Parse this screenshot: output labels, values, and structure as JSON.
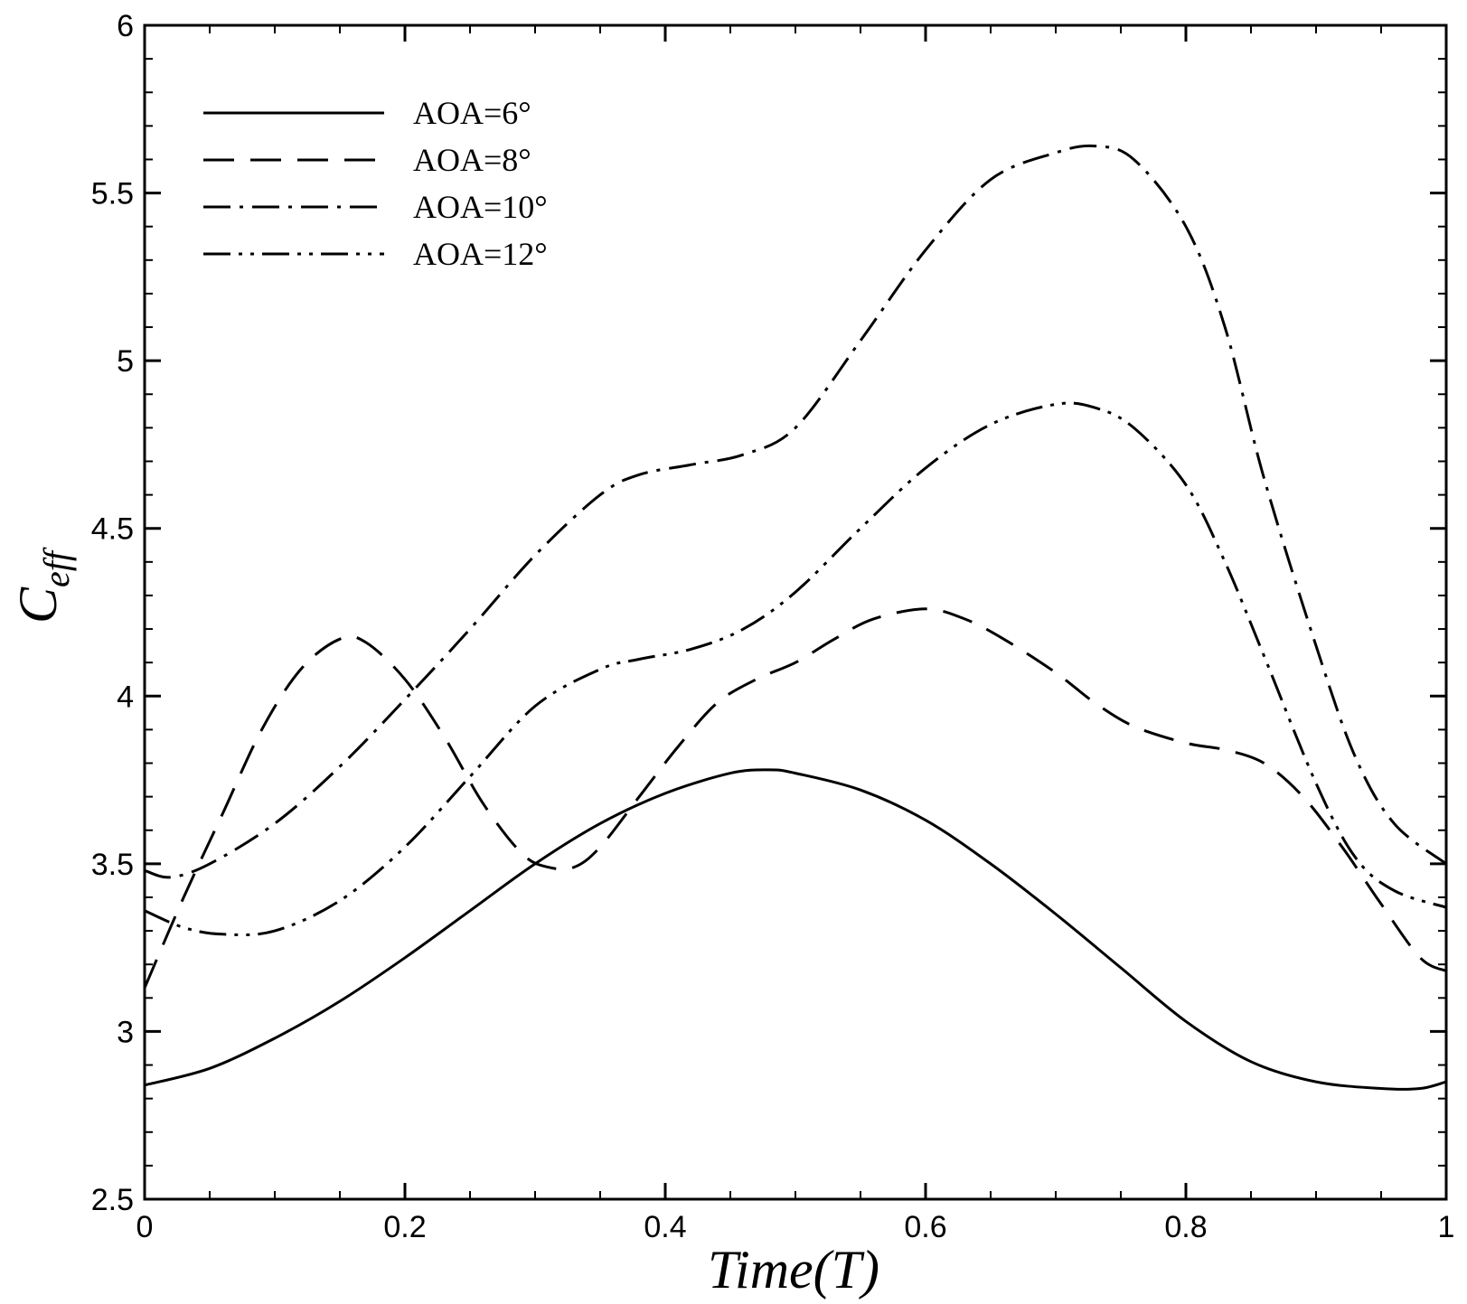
{
  "chart_data": {
    "type": "line",
    "title": "",
    "xlabel": "Time(T)",
    "ylabel_main": "C",
    "ylabel_sub": "eff",
    "xlim": [
      0,
      1
    ],
    "ylim": [
      2.5,
      6
    ],
    "x_ticks": [
      "0",
      "0.2",
      "0.4",
      "0.6",
      "0.8",
      "1"
    ],
    "y_ticks": [
      "2.5",
      "3",
      "3.5",
      "4",
      "4.5",
      "5",
      "5.5",
      "6"
    ],
    "x_tick_values": [
      0,
      0.2,
      0.4,
      0.6,
      0.8,
      1
    ],
    "y_tick_values": [
      2.5,
      3,
      3.5,
      4,
      4.5,
      5,
      5.5,
      6
    ],
    "grid": false,
    "legend_position": "top-left",
    "series": [
      {
        "name": "AOA=6°",
        "style": "solid",
        "x": [
          0,
          0.05,
          0.1,
          0.15,
          0.2,
          0.25,
          0.3,
          0.35,
          0.4,
          0.45,
          0.48,
          0.5,
          0.55,
          0.6,
          0.65,
          0.7,
          0.75,
          0.8,
          0.85,
          0.9,
          0.95,
          0.98,
          1
        ],
        "y": [
          2.84,
          2.89,
          2.98,
          3.09,
          3.22,
          3.36,
          3.5,
          3.62,
          3.71,
          3.77,
          3.78,
          3.77,
          3.72,
          3.63,
          3.5,
          3.35,
          3.19,
          3.03,
          2.91,
          2.85,
          2.83,
          2.83,
          2.85
        ]
      },
      {
        "name": "AOA=8°",
        "style": "dashed",
        "x": [
          0,
          0.03,
          0.06,
          0.09,
          0.12,
          0.15,
          0.17,
          0.2,
          0.23,
          0.26,
          0.29,
          0.31,
          0.33,
          0.35,
          0.38,
          0.41,
          0.44,
          0.47,
          0.5,
          0.53,
          0.56,
          0.6,
          0.63,
          0.66,
          0.7,
          0.73,
          0.76,
          0.8,
          0.83,
          0.86,
          0.89,
          0.92,
          0.95,
          0.98,
          1
        ],
        "y": [
          3.13,
          3.4,
          3.65,
          3.9,
          4.08,
          4.17,
          4.16,
          4.05,
          3.88,
          3.68,
          3.53,
          3.49,
          3.49,
          3.55,
          3.7,
          3.85,
          3.98,
          4.05,
          4.1,
          4.17,
          4.23,
          4.26,
          4.23,
          4.17,
          4.07,
          3.98,
          3.91,
          3.86,
          3.84,
          3.8,
          3.7,
          3.55,
          3.38,
          3.22,
          3.18
        ]
      },
      {
        "name": "AOA=10°",
        "style": "dash-dot",
        "x": [
          0,
          0.02,
          0.05,
          0.1,
          0.15,
          0.2,
          0.25,
          0.3,
          0.35,
          0.38,
          0.42,
          0.46,
          0.5,
          0.55,
          0.6,
          0.65,
          0.7,
          0.73,
          0.76,
          0.8,
          0.83,
          0.86,
          0.9,
          0.93,
          0.96,
          1
        ],
        "y": [
          3.48,
          3.46,
          3.5,
          3.62,
          3.79,
          3.99,
          4.2,
          4.42,
          4.6,
          4.66,
          4.69,
          4.72,
          4.8,
          5.06,
          5.33,
          5.54,
          5.62,
          5.64,
          5.6,
          5.4,
          5.1,
          4.65,
          4.15,
          3.82,
          3.62,
          3.5
        ]
      },
      {
        "name": "AOA=12°",
        "style": "dash-dot-dot",
        "x": [
          0,
          0.03,
          0.06,
          0.1,
          0.15,
          0.2,
          0.25,
          0.3,
          0.35,
          0.38,
          0.42,
          0.46,
          0.5,
          0.55,
          0.6,
          0.65,
          0.7,
          0.73,
          0.76,
          0.8,
          0.83,
          0.86,
          0.9,
          0.93,
          0.96,
          1
        ],
        "y": [
          3.36,
          3.31,
          3.29,
          3.3,
          3.39,
          3.55,
          3.76,
          3.97,
          4.08,
          4.11,
          4.14,
          4.2,
          4.31,
          4.5,
          4.68,
          4.81,
          4.87,
          4.86,
          4.8,
          4.63,
          4.4,
          4.12,
          3.74,
          3.52,
          3.42,
          3.37
        ]
      }
    ]
  }
}
